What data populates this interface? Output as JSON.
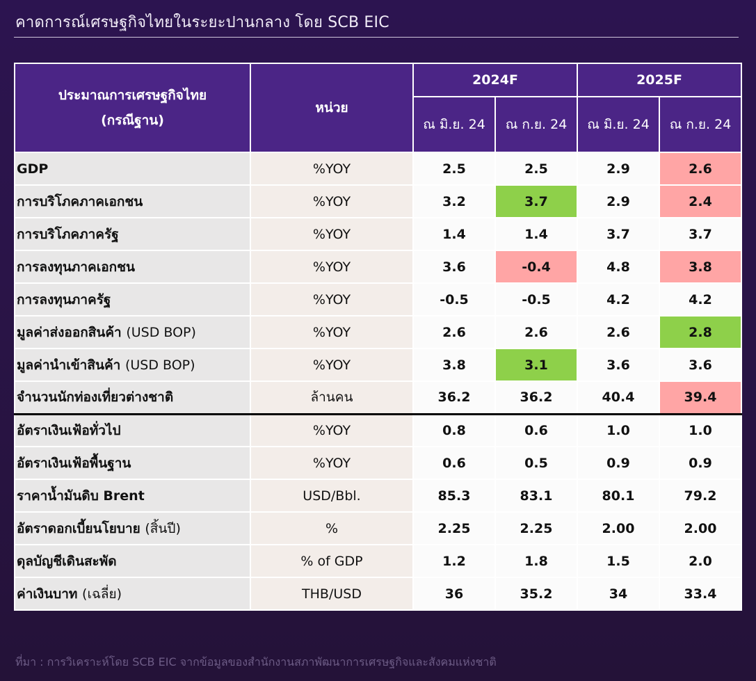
{
  "page": {
    "title": "คาดการณ์เศรษฐกิจไทยในระยะปานกลาง โดย SCB EIC",
    "source": "ที่มา : การวิเคราะห์โดย SCB EIC จากข้อมูลของสำนักงานสภาพัฒนาการเศรษฐกิจและสังคมแห่งชาติ"
  },
  "table": {
    "header": {
      "indicator_line1": "ประมาณการเศรษฐกิจไทย",
      "indicator_line2": "(กรณีฐาน)",
      "unit": "หน่วย",
      "years": [
        "2024F",
        "2025F"
      ],
      "sub": [
        "ณ มิ.ย. 24",
        "ณ ก.ย. 24",
        "ณ มิ.ย. 24",
        "ณ ก.ย. 24"
      ]
    },
    "rows": [
      {
        "label": "GDP",
        "label_note": "",
        "unit": "%YOY",
        "values": [
          "2.5",
          "2.5",
          "2.9",
          "2.6"
        ],
        "highlight": [
          "",
          "",
          "",
          "red"
        ]
      },
      {
        "label": "การบริโภคภาคเอกชน",
        "label_note": "",
        "unit": "%YOY",
        "values": [
          "3.2",
          "3.7",
          "2.9",
          "2.4"
        ],
        "highlight": [
          "",
          "green",
          "",
          "red"
        ]
      },
      {
        "label": "การบริโภคภาครัฐ",
        "label_note": "",
        "unit": "%YOY",
        "values": [
          "1.4",
          "1.4",
          "3.7",
          "3.7"
        ],
        "highlight": [
          "",
          "",
          "",
          ""
        ]
      },
      {
        "label": "การลงทุนภาคเอกชน",
        "label_note": "",
        "unit": "%YOY",
        "values": [
          "3.6",
          "-0.4",
          "4.8",
          "3.8"
        ],
        "highlight": [
          "",
          "red",
          "",
          "red"
        ]
      },
      {
        "label": "การลงทุนภาครัฐ",
        "label_note": "",
        "unit": "%YOY",
        "values": [
          "-0.5",
          "-0.5",
          "4.2",
          "4.2"
        ],
        "highlight": [
          "",
          "",
          "",
          ""
        ]
      },
      {
        "label": "มูลค่าส่งออกสินค้า",
        "label_note": "(USD BOP)",
        "unit": "%YOY",
        "values": [
          "2.6",
          "2.6",
          "2.6",
          "2.8"
        ],
        "highlight": [
          "",
          "",
          "",
          "green"
        ]
      },
      {
        "label": "มูลค่านำเข้าสินค้า",
        "label_note": "(USD BOP)",
        "unit": "%YOY",
        "values": [
          "3.8",
          "3.1",
          "3.6",
          "3.6"
        ],
        "highlight": [
          "",
          "green",
          "",
          ""
        ]
      },
      {
        "label": "จำนวนนักท่องเที่ยวต่างชาติ",
        "label_note": "",
        "unit": "ล้านคน",
        "values": [
          "36.2",
          "36.2",
          "40.4",
          "39.4"
        ],
        "highlight": [
          "",
          "",
          "",
          "red"
        ]
      },
      {
        "label": "อัตราเงินเฟ้อทั่วไป",
        "label_note": "",
        "unit": "%YOY",
        "values": [
          "0.8",
          "0.6",
          "1.0",
          "1.0"
        ],
        "highlight": [
          "",
          "",
          "",
          ""
        ]
      },
      {
        "label": "อัตราเงินเฟ้อพื้นฐาน",
        "label_note": "",
        "unit": "%YOY",
        "values": [
          "0.6",
          "0.5",
          "0.9",
          "0.9"
        ],
        "highlight": [
          "",
          "",
          "",
          ""
        ]
      },
      {
        "label": "ราคาน้ำมันดิบ Brent",
        "label_note": "",
        "unit": "USD/Bbl.",
        "values": [
          "85.3",
          "83.1",
          "80.1",
          "79.2"
        ],
        "highlight": [
          "",
          "",
          "",
          ""
        ]
      },
      {
        "label": "อัตราดอกเบี้ยนโยบาย",
        "label_note": "(สิ้นปี)",
        "unit": "%",
        "values": [
          "2.25",
          "2.25",
          "2.00",
          "2.00"
        ],
        "highlight": [
          "",
          "",
          "",
          ""
        ]
      },
      {
        "label": "ดุลบัญชีเดินสะพัด",
        "label_note": "",
        "unit": "% of GDP",
        "values": [
          "1.2",
          "1.8",
          "1.5",
          "2.0"
        ],
        "highlight": [
          "",
          "",
          "",
          ""
        ]
      },
      {
        "label": "ค่าเงินบาท",
        "label_note": "(เฉลี่ย)",
        "unit": "THB/USD",
        "values": [
          "36",
          "35.2",
          "34",
          "33.4"
        ],
        "highlight": [
          "",
          "",
          "",
          ""
        ]
      }
    ]
  },
  "colors": {
    "background": "#2a1448",
    "header": "#4b2586",
    "highlight_green": "#8ed04a",
    "highlight_red": "#ffa5a5",
    "label_cell": "#e8e7e7",
    "unit_cell": "#f3ede9"
  }
}
